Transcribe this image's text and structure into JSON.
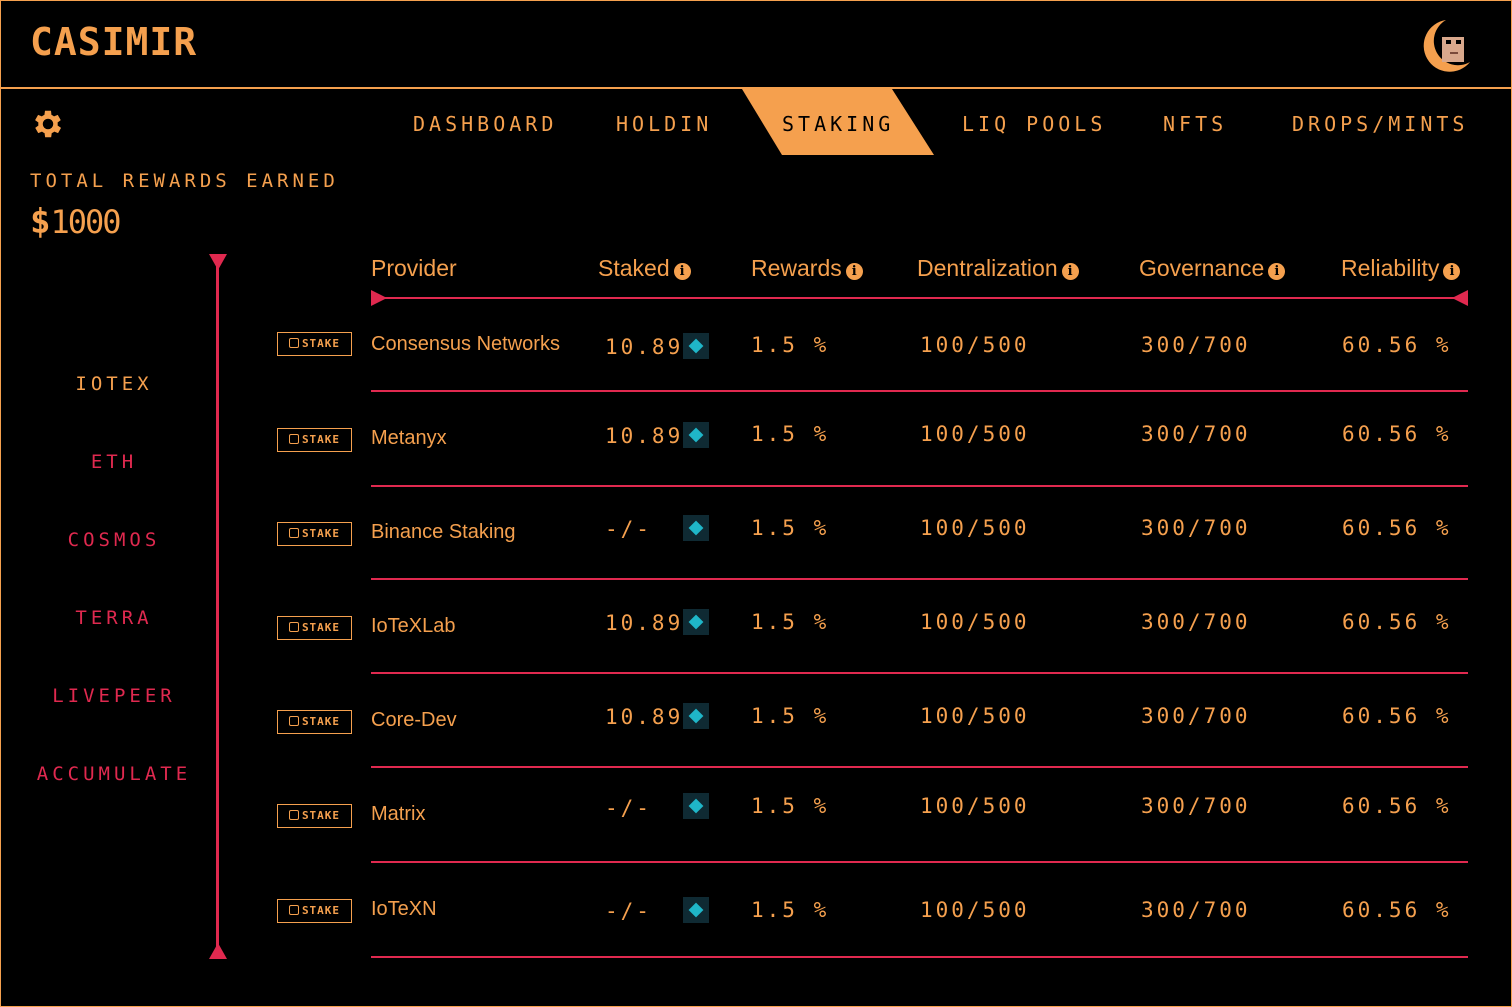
{
  "app": {
    "title": "CASIMIR"
  },
  "nav": {
    "tabs": [
      {
        "label": "DASHBOARD"
      },
      {
        "label": "HOLDIN"
      },
      {
        "label": "STAKING"
      },
      {
        "label": "LIQ POOLS"
      },
      {
        "label": "NFTS"
      },
      {
        "label": "DROPS/MINTS"
      }
    ],
    "active_tab": "STAKING"
  },
  "rewards": {
    "label": "TOTAL REWARDS EARNED",
    "currency": "$",
    "value": "1000"
  },
  "chains": {
    "items": [
      {
        "label": "IOTEX"
      },
      {
        "label": "ETH"
      },
      {
        "label": "COSMOS"
      },
      {
        "label": "TERRA"
      },
      {
        "label": "LIVEPEER"
      },
      {
        "label": "ACCUMULATE"
      }
    ],
    "active": "IOTEX"
  },
  "table": {
    "columns": {
      "provider": "Provider",
      "staked": "Staked",
      "rewards": "Rewards",
      "decentralization": "Dentralization",
      "governance": "Governance",
      "reliability": "Reliability"
    },
    "stake_label": "STAKE",
    "rows": [
      {
        "provider": "Consensus Networks",
        "staked": "10.89",
        "rewards": "1.5 %",
        "decentralization": "100/500",
        "governance": "300/700",
        "reliability": "60.56 %"
      },
      {
        "provider": "Metanyx",
        "staked": "10.89",
        "rewards": "1.5 %",
        "decentralization": "100/500",
        "governance": "300/700",
        "reliability": "60.56 %"
      },
      {
        "provider": "Binance Staking",
        "staked": "-/-",
        "rewards": "1.5 %",
        "decentralization": "100/500",
        "governance": "300/700",
        "reliability": "60.56 %"
      },
      {
        "provider": "IoTeXLab",
        "staked": "10.89",
        "rewards": "1.5 %",
        "decentralization": "100/500",
        "governance": "300/700",
        "reliability": "60.56 %"
      },
      {
        "provider": "Core-Dev",
        "staked": "10.89",
        "rewards": "1.5 %",
        "decentralization": "100/500",
        "governance": "300/700",
        "reliability": "60.56 %"
      },
      {
        "provider": "Matrix",
        "staked": "-/-",
        "rewards": "1.5 %",
        "decentralization": "100/500",
        "governance": "300/700",
        "reliability": "60.56 %"
      },
      {
        "provider": "IoTeXN",
        "staked": "-/-",
        "rewards": "1.5 %",
        "decentralization": "100/500",
        "governance": "300/700",
        "reliability": "60.56 %"
      }
    ]
  },
  "colors": {
    "accent": "#f5a04e",
    "line": "#e0294f",
    "background": "#000000",
    "token": "#1fb6c8"
  }
}
